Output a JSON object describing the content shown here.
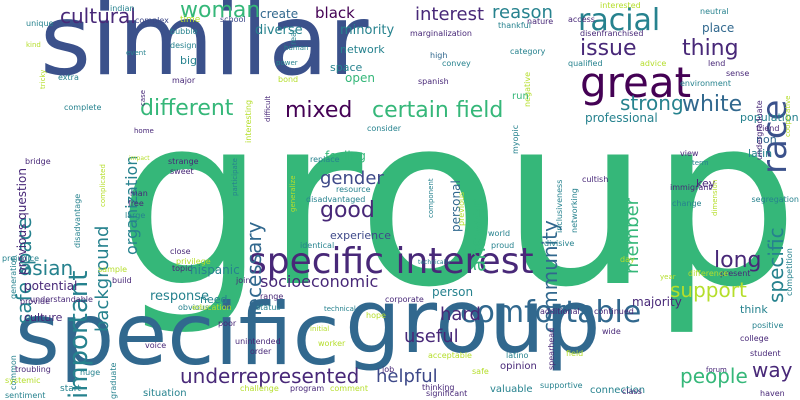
{
  "palette": {
    "navy": "#3b518b",
    "blue": "#31688e",
    "teal": "#26828e",
    "teal_light": "#1f9e89",
    "green": "#35b779",
    "green_light": "#6ece58",
    "lime": "#b5de2b",
    "purple": "#440154",
    "violet": "#482878",
    "indigo": "#3e4989"
  },
  "words": [
    {
      "t": "group",
      "c": "green"
    },
    {
      "t": "similar",
      "c": "navy"
    },
    {
      "t": "specific",
      "c": "blue"
    },
    {
      "t": "group",
      "c": "blue"
    },
    {
      "t": "great",
      "c": "purple"
    },
    {
      "t": "specific interest",
      "c": "violet"
    },
    {
      "t": "racial",
      "c": "teal"
    },
    {
      "t": "race",
      "c": "navy"
    },
    {
      "t": "comfortable",
      "c": "blue"
    },
    {
      "t": "important",
      "c": "teal"
    },
    {
      "t": "woman",
      "c": "green"
    },
    {
      "t": "cultural",
      "c": "violet"
    },
    {
      "t": "safe space",
      "c": "teal"
    },
    {
      "t": "asian",
      "c": "teal"
    },
    {
      "t": "different",
      "c": "green"
    },
    {
      "t": "mixed",
      "c": "purple"
    },
    {
      "t": "certain field",
      "c": "green"
    },
    {
      "t": "issue",
      "c": "violet"
    },
    {
      "t": "thing",
      "c": "violet"
    },
    {
      "t": "strong",
      "c": "teal"
    },
    {
      "t": "white",
      "c": "blue"
    },
    {
      "t": "interest",
      "c": "violet"
    },
    {
      "t": "reason",
      "c": "teal"
    },
    {
      "t": "good",
      "c": "violet"
    },
    {
      "t": "gender",
      "c": "indigo"
    },
    {
      "t": "answer",
      "c": "green"
    },
    {
      "t": "community",
      "c": "blue"
    },
    {
      "t": "member",
      "c": "green"
    },
    {
      "t": "long",
      "c": "violet"
    },
    {
      "t": "support",
      "c": "lime"
    },
    {
      "t": "specific",
      "c": "teal"
    },
    {
      "t": "necessary",
      "c": "blue"
    },
    {
      "t": "background",
      "c": "teal"
    },
    {
      "t": "organization",
      "c": "teal"
    },
    {
      "t": "underrepresented",
      "c": "violet"
    },
    {
      "t": "people",
      "c": "green"
    },
    {
      "t": "way",
      "c": "violet"
    },
    {
      "t": "helpful",
      "c": "indigo"
    },
    {
      "t": "useful",
      "c": "violet"
    },
    {
      "t": "hard",
      "c": "violet"
    },
    {
      "t": "black",
      "c": "purple"
    },
    {
      "t": "minority",
      "c": "teal"
    },
    {
      "t": "network",
      "c": "teal"
    },
    {
      "t": "space",
      "c": "teal"
    },
    {
      "t": "open",
      "c": "green"
    },
    {
      "t": "diverse",
      "c": "teal"
    },
    {
      "t": "create",
      "c": "blue"
    },
    {
      "t": "socioeconomic",
      "c": "violet"
    },
    {
      "t": "experience",
      "c": "indigo"
    },
    {
      "t": "response",
      "c": "teal"
    },
    {
      "t": "hispanic",
      "c": "teal"
    },
    {
      "t": "previous question",
      "c": "violet"
    },
    {
      "t": "potential",
      "c": "violet"
    },
    {
      "t": "culture",
      "c": "violet"
    },
    {
      "t": "latin",
      "c": "teal"
    },
    {
      "t": "non",
      "c": "blue"
    },
    {
      "t": "key",
      "c": "violet"
    },
    {
      "t": "professional",
      "c": "teal"
    },
    {
      "t": "population",
      "c": "teal"
    },
    {
      "t": "feeling",
      "c": "green"
    },
    {
      "t": "need",
      "c": "teal"
    },
    {
      "t": "majority",
      "c": "violet"
    },
    {
      "t": "think",
      "c": "teal"
    },
    {
      "t": "person",
      "c": "teal"
    },
    {
      "t": "personal",
      "c": "blue"
    },
    {
      "t": "place",
      "c": "blue"
    },
    {
      "t": "unique",
      "c": "teal"
    },
    {
      "t": "indian",
      "c": "teal"
    },
    {
      "t": "complex",
      "c": "indigo"
    },
    {
      "t": "time",
      "c": "lime"
    },
    {
      "t": "school",
      "c": "indigo"
    },
    {
      "t": "bubble",
      "c": "teal"
    },
    {
      "t": "design",
      "c": "teal"
    },
    {
      "t": "big",
      "c": "teal"
    },
    {
      "t": "event",
      "c": "teal"
    },
    {
      "t": "case",
      "c": "violet"
    },
    {
      "t": "major",
      "c": "violet"
    },
    {
      "t": "extra",
      "c": "teal"
    },
    {
      "t": "human",
      "c": "teal"
    },
    {
      "t": "power",
      "c": "teal"
    },
    {
      "t": "bond",
      "c": "lime"
    },
    {
      "t": "difficult",
      "c": "violet"
    },
    {
      "t": "interesting",
      "c": "lime"
    },
    {
      "t": "real",
      "c": "teal"
    },
    {
      "t": "marginalization",
      "c": "violet"
    },
    {
      "t": "disenfranchised",
      "c": "violet"
    },
    {
      "t": "access",
      "c": "violet"
    },
    {
      "t": "nature",
      "c": "violet"
    },
    {
      "t": "thankful",
      "c": "teal"
    },
    {
      "t": "category",
      "c": "teal"
    },
    {
      "t": "negative",
      "c": "lime"
    },
    {
      "t": "convey",
      "c": "teal"
    },
    {
      "t": "high",
      "c": "blue"
    },
    {
      "t": "spanish",
      "c": "violet"
    },
    {
      "t": "run",
      "c": "green"
    },
    {
      "t": "qualified",
      "c": "teal"
    },
    {
      "t": "advice",
      "c": "lime"
    },
    {
      "t": "lend",
      "c": "violet"
    },
    {
      "t": "environment",
      "c": "teal"
    },
    {
      "t": "neutral",
      "c": "teal"
    },
    {
      "t": "interested",
      "c": "lime"
    },
    {
      "t": "undergraduate",
      "c": "violet"
    },
    {
      "t": "cooperative",
      "c": "lime"
    },
    {
      "t": "sense",
      "c": "violet"
    },
    {
      "t": "friend",
      "c": "violet"
    },
    {
      "t": "view",
      "c": "violet"
    },
    {
      "t": "term",
      "c": "teal"
    },
    {
      "t": "immigrant",
      "c": "violet"
    },
    {
      "t": "change",
      "c": "teal"
    },
    {
      "t": "segregation",
      "c": "teal"
    },
    {
      "t": "competition",
      "c": "teal"
    },
    {
      "t": "dimension",
      "c": "lime"
    },
    {
      "t": "kind",
      "c": "lime"
    },
    {
      "t": "tricky",
      "c": "lime"
    },
    {
      "t": "complete",
      "c": "teal"
    },
    {
      "t": "bridge",
      "c": "violet"
    },
    {
      "t": "home",
      "c": "violet"
    },
    {
      "t": "impact",
      "c": "lime"
    },
    {
      "t": "complicated",
      "c": "lime"
    },
    {
      "t": "disadvantage",
      "c": "teal"
    },
    {
      "t": "man",
      "c": "violet"
    },
    {
      "t": "free",
      "c": "violet"
    },
    {
      "t": "large",
      "c": "teal"
    },
    {
      "t": "strange",
      "c": "violet"
    },
    {
      "t": "sweet",
      "c": "violet"
    },
    {
      "t": "participate",
      "c": "teal"
    },
    {
      "t": "generalize",
      "c": "lime"
    },
    {
      "t": "replace",
      "c": "teal"
    },
    {
      "t": "resource",
      "c": "teal"
    },
    {
      "t": "disadvantaged",
      "c": "teal"
    },
    {
      "t": "consider",
      "c": "teal"
    },
    {
      "t": "component",
      "c": "teal"
    },
    {
      "t": "previous",
      "c": "lime"
    },
    {
      "t": "proud",
      "c": "teal"
    },
    {
      "t": "world",
      "c": "teal"
    },
    {
      "t": "divisive",
      "c": "teal"
    },
    {
      "t": "inclusiveness",
      "c": "teal"
    },
    {
      "t": "networking",
      "c": "teal"
    },
    {
      "t": "cultish",
      "c": "violet"
    },
    {
      "t": "myopic",
      "c": "teal"
    },
    {
      "t": "day",
      "c": "lime"
    },
    {
      "t": "present",
      "c": "violet"
    },
    {
      "t": "year",
      "c": "lime"
    },
    {
      "t": "difference",
      "c": "lime"
    },
    {
      "t": "generation",
      "c": "teal"
    },
    {
      "t": "prejudice",
      "c": "teal"
    },
    {
      "t": "sample",
      "c": "lime"
    },
    {
      "t": "build",
      "c": "violet"
    },
    {
      "t": "close",
      "c": "violet"
    },
    {
      "t": "privilege",
      "c": "lime"
    },
    {
      "t": "topic",
      "c": "violet"
    },
    {
      "t": "identical",
      "c": "teal"
    },
    {
      "t": "technically",
      "c": "teal"
    },
    {
      "t": "join",
      "c": "violet"
    },
    {
      "t": "provide",
      "c": "violet"
    },
    {
      "t": "understandable",
      "c": "violet"
    },
    {
      "t": "obvious",
      "c": "teal"
    },
    {
      "t": "education",
      "c": "lime"
    },
    {
      "t": "range",
      "c": "violet"
    },
    {
      "t": "status",
      "c": "teal"
    },
    {
      "t": "corporate",
      "c": "violet"
    },
    {
      "t": "technical",
      "c": "teal"
    },
    {
      "t": "hope",
      "c": "lime"
    },
    {
      "t": "additional",
      "c": "violet"
    },
    {
      "t": "continued",
      "c": "violet"
    },
    {
      "t": "poor",
      "c": "violet"
    },
    {
      "t": "initial",
      "c": "lime"
    },
    {
      "t": "worker",
      "c": "lime"
    },
    {
      "t": "common",
      "c": "teal"
    },
    {
      "t": "troubling",
      "c": "violet"
    },
    {
      "t": "systemic",
      "c": "lime"
    },
    {
      "t": "sentiment",
      "c": "teal"
    },
    {
      "t": "voice",
      "c": "violet"
    },
    {
      "t": "unintended",
      "c": "violet"
    },
    {
      "t": "order",
      "c": "violet"
    },
    {
      "t": "huge",
      "c": "teal"
    },
    {
      "t": "start",
      "c": "teal"
    },
    {
      "t": "graduate",
      "c": "teal"
    },
    {
      "t": "situation",
      "c": "teal"
    },
    {
      "t": "challenge",
      "c": "lime"
    },
    {
      "t": "program",
      "c": "violet"
    },
    {
      "t": "comment",
      "c": "lime"
    },
    {
      "t": "job",
      "c": "violet"
    },
    {
      "t": "safe",
      "c": "lime"
    },
    {
      "t": "thinking",
      "c": "violet"
    },
    {
      "t": "significant",
      "c": "violet"
    },
    {
      "t": "valuable",
      "c": "teal"
    },
    {
      "t": "acceptable",
      "c": "lime"
    },
    {
      "t": "spearhead",
      "c": "violet"
    },
    {
      "t": "latino",
      "c": "teal"
    },
    {
      "t": "field",
      "c": "lime"
    },
    {
      "t": "wide",
      "c": "violet"
    },
    {
      "t": "opinion",
      "c": "violet"
    },
    {
      "t": "supportive",
      "c": "teal"
    },
    {
      "t": "connection",
      "c": "teal"
    },
    {
      "t": "class",
      "c": "violet"
    },
    {
      "t": "forum",
      "c": "violet"
    },
    {
      "t": "haven",
      "c": "violet"
    },
    {
      "t": "positive",
      "c": "teal"
    },
    {
      "t": "college",
      "c": "violet"
    },
    {
      "t": "student",
      "c": "violet"
    }
  ]
}
